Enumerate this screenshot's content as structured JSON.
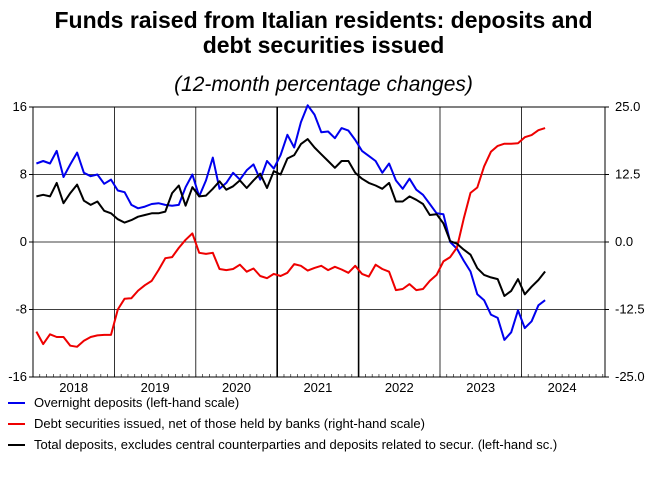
{
  "chart_data": {
    "type": "line",
    "title_line1": "Funds raised from Italian residents: deposits and",
    "title_line2": "debt securities issued",
    "subtitle": "(12-month percentage changes)",
    "x_labels": [
      "2018",
      "2019",
      "2020",
      "2021",
      "2022",
      "2023",
      "2024"
    ],
    "left_axis": {
      "ylim": [
        -16,
        16
      ],
      "ticks": [
        "16",
        "8",
        "0",
        "-8",
        "-16"
      ]
    },
    "right_axis": {
      "ylim": [
        -25,
        25
      ],
      "ticks": [
        "25.0",
        "12.5",
        "0.0",
        "-12.5",
        "-25.0"
      ]
    },
    "colors": {
      "overnight": "#0000ee",
      "debt": "#ee0000",
      "total": "#000000"
    },
    "series": [
      {
        "name": "Overnight deposits (left-hand scale)",
        "key": "overnight",
        "axis": "left",
        "values": [
          9.3,
          9.6,
          9.3,
          10.8,
          7.7,
          9.2,
          10.6,
          8.2,
          7.8,
          8.0,
          6.9,
          7.4,
          6.1,
          5.9,
          4.4,
          4.0,
          4.2,
          4.5,
          4.6,
          4.4,
          4.3,
          4.4,
          6.5,
          8.0,
          5.4,
          7.3,
          10.0,
          6.3,
          7.0,
          8.2,
          7.4,
          8.5,
          9.2,
          7.4,
          9.6,
          8.7,
          10.3,
          12.7,
          11.2,
          14.2,
          16.2,
          15.1,
          13.0,
          13.1,
          12.3,
          13.5,
          13.2,
          12.1,
          10.8,
          10.2,
          9.6,
          8.2,
          9.3,
          7.3,
          6.3,
          7.5,
          6.2,
          5.6,
          4.5,
          3.4,
          3.3,
          0.0,
          -0.8,
          -2.2,
          -3.5,
          -6.2,
          -6.9,
          -8.6,
          -9.0,
          -11.6,
          -10.7,
          -8.1,
          -10.2,
          -9.4,
          -7.5,
          -6.9
        ]
      },
      {
        "name": "Debt securities issued, net of those held by banks (right-hand scale)",
        "key": "debt",
        "axis": "right",
        "values": [
          -16.6,
          -18.9,
          -17.1,
          -17.6,
          -17.6,
          -19.2,
          -19.4,
          -18.3,
          -17.6,
          -17.3,
          -17.2,
          -17.2,
          -12.5,
          -10.5,
          -10.4,
          -9.0,
          -8.0,
          -7.2,
          -5.2,
          -3.0,
          -2.8,
          -1.1,
          0.4,
          1.6,
          -2.0,
          -2.2,
          -2.0,
          -5.0,
          -5.2,
          -5.0,
          -4.2,
          -5.5,
          -4.9,
          -6.3,
          -6.7,
          -5.9,
          -6.3,
          -5.7,
          -4.1,
          -4.4,
          -5.3,
          -4.8,
          -4.4,
          -5.2,
          -4.6,
          -5.1,
          -5.7,
          -4.4,
          -5.9,
          -6.4,
          -4.2,
          -5.0,
          -5.5,
          -8.9,
          -8.7,
          -7.8,
          -8.9,
          -8.7,
          -7.2,
          -6.1,
          -3.6,
          -2.8,
          -1.0,
          4.3,
          9.1,
          10.1,
          14.0,
          16.7,
          17.8,
          18.2,
          18.2,
          18.3,
          19.4,
          19.8,
          20.7,
          21.1
        ]
      },
      {
        "name": "Total deposits, excludes central counterparties and deposits related to secur. (left-hand sc.)",
        "key": "total",
        "axis": "left",
        "values": [
          5.4,
          5.6,
          5.4,
          7.0,
          4.6,
          5.8,
          6.8,
          4.9,
          4.4,
          4.8,
          3.7,
          3.4,
          2.7,
          2.3,
          2.6,
          3.0,
          3.2,
          3.4,
          3.4,
          3.6,
          5.8,
          6.7,
          4.3,
          6.5,
          5.4,
          5.5,
          6.3,
          7.2,
          6.2,
          6.6,
          7.3,
          6.4,
          7.3,
          8.1,
          6.4,
          8.4,
          8.0,
          9.9,
          10.3,
          11.6,
          12.2,
          11.2,
          10.4,
          9.6,
          8.8,
          9.6,
          9.6,
          8.2,
          7.5,
          7.0,
          6.7,
          6.3,
          7.0,
          4.8,
          4.8,
          5.4,
          5.0,
          4.5,
          3.2,
          3.3,
          2.2,
          0.1,
          -0.2,
          -0.9,
          -1.5,
          -3.1,
          -3.9,
          -4.2,
          -4.4,
          -6.4,
          -5.8,
          -4.4,
          -6.2,
          -5.3,
          -4.5,
          -3.5
        ]
      }
    ]
  }
}
